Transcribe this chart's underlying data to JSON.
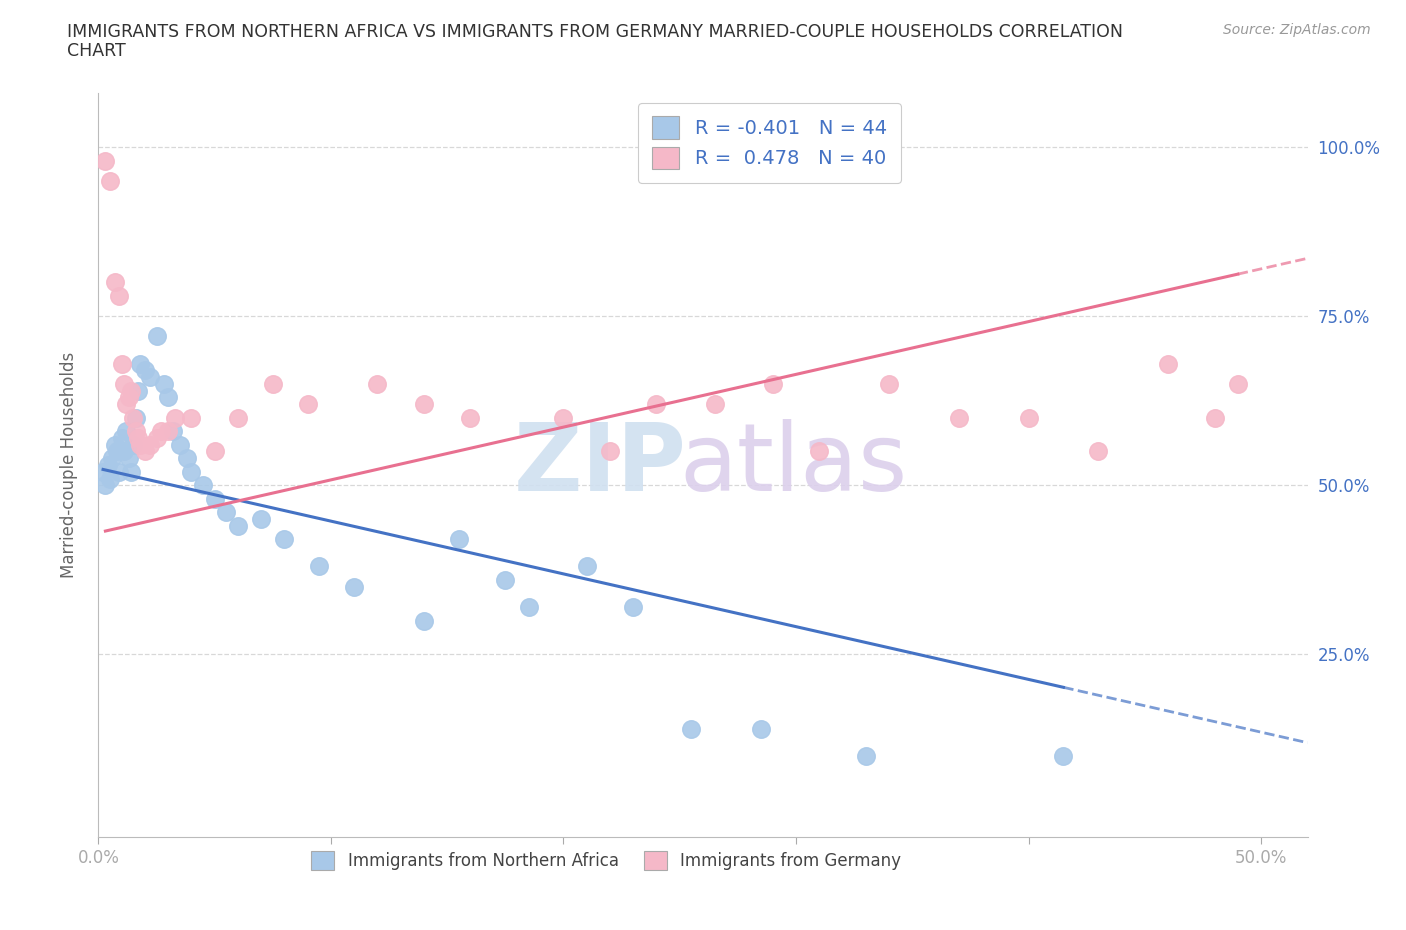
{
  "title_line1": "IMMIGRANTS FROM NORTHERN AFRICA VS IMMIGRANTS FROM GERMANY MARRIED-COUPLE HOUSEHOLDS CORRELATION",
  "title_line2": "CHART",
  "source": "Source: ZipAtlas.com",
  "ylabel": "Married-couple Households",
  "xlim": [
    0.0,
    0.52
  ],
  "ylim": [
    -0.02,
    1.08
  ],
  "xticks": [
    0.0,
    0.1,
    0.2,
    0.3,
    0.4,
    0.5
  ],
  "xticklabels_show": [
    "0.0%",
    "",
    "",
    "",
    "",
    "50.0%"
  ],
  "yticks": [
    0.25,
    0.5,
    0.75,
    1.0
  ],
  "yticklabels": [
    "25.0%",
    "50.0%",
    "75.0%",
    "100.0%"
  ],
  "blue_R": -0.401,
  "blue_N": 44,
  "pink_R": 0.478,
  "pink_N": 40,
  "legend_label_blue": "Immigrants from Northern Africa",
  "legend_label_pink": "Immigrants from Germany",
  "blue_color": "#a8c8e8",
  "pink_color": "#f5b8c8",
  "blue_edge_color": "#8ab0d8",
  "pink_edge_color": "#e898b0",
  "blue_line_color": "#4472c4",
  "pink_line_color": "#e87090",
  "grid_color": "#d8d8d8",
  "tick_color": "#4472c4",
  "blue_x": [
    0.002,
    0.003,
    0.004,
    0.005,
    0.006,
    0.007,
    0.008,
    0.009,
    0.01,
    0.011,
    0.012,
    0.013,
    0.014,
    0.015,
    0.016,
    0.017,
    0.018,
    0.02,
    0.022,
    0.025,
    0.028,
    0.03,
    0.032,
    0.035,
    0.038,
    0.04,
    0.045,
    0.05,
    0.055,
    0.06,
    0.07,
    0.08,
    0.095,
    0.11,
    0.14,
    0.155,
    0.175,
    0.185,
    0.21,
    0.23,
    0.255,
    0.285,
    0.33,
    0.415
  ],
  "blue_y": [
    0.52,
    0.5,
    0.53,
    0.51,
    0.54,
    0.56,
    0.55,
    0.52,
    0.57,
    0.55,
    0.58,
    0.54,
    0.52,
    0.56,
    0.6,
    0.64,
    0.68,
    0.67,
    0.66,
    0.72,
    0.65,
    0.63,
    0.58,
    0.56,
    0.54,
    0.52,
    0.5,
    0.48,
    0.46,
    0.44,
    0.45,
    0.42,
    0.38,
    0.35,
    0.3,
    0.42,
    0.36,
    0.32,
    0.38,
    0.32,
    0.14,
    0.14,
    0.1,
    0.1
  ],
  "pink_x": [
    0.003,
    0.005,
    0.007,
    0.009,
    0.01,
    0.011,
    0.012,
    0.013,
    0.014,
    0.015,
    0.016,
    0.017,
    0.018,
    0.02,
    0.022,
    0.025,
    0.027,
    0.03,
    0.033,
    0.04,
    0.05,
    0.06,
    0.075,
    0.09,
    0.12,
    0.14,
    0.16,
    0.2,
    0.22,
    0.24,
    0.265,
    0.29,
    0.31,
    0.34,
    0.37,
    0.4,
    0.43,
    0.46,
    0.48,
    0.49
  ],
  "pink_y": [
    0.98,
    0.95,
    0.8,
    0.78,
    0.68,
    0.65,
    0.62,
    0.63,
    0.64,
    0.6,
    0.58,
    0.57,
    0.56,
    0.55,
    0.56,
    0.57,
    0.58,
    0.58,
    0.6,
    0.6,
    0.55,
    0.6,
    0.65,
    0.62,
    0.65,
    0.62,
    0.6,
    0.6,
    0.55,
    0.62,
    0.62,
    0.65,
    0.55,
    0.65,
    0.6,
    0.6,
    0.55,
    0.68,
    0.6,
    0.65
  ],
  "watermark_zip_color": "#d0e0f0",
  "watermark_atlas_color": "#dcd0ec"
}
